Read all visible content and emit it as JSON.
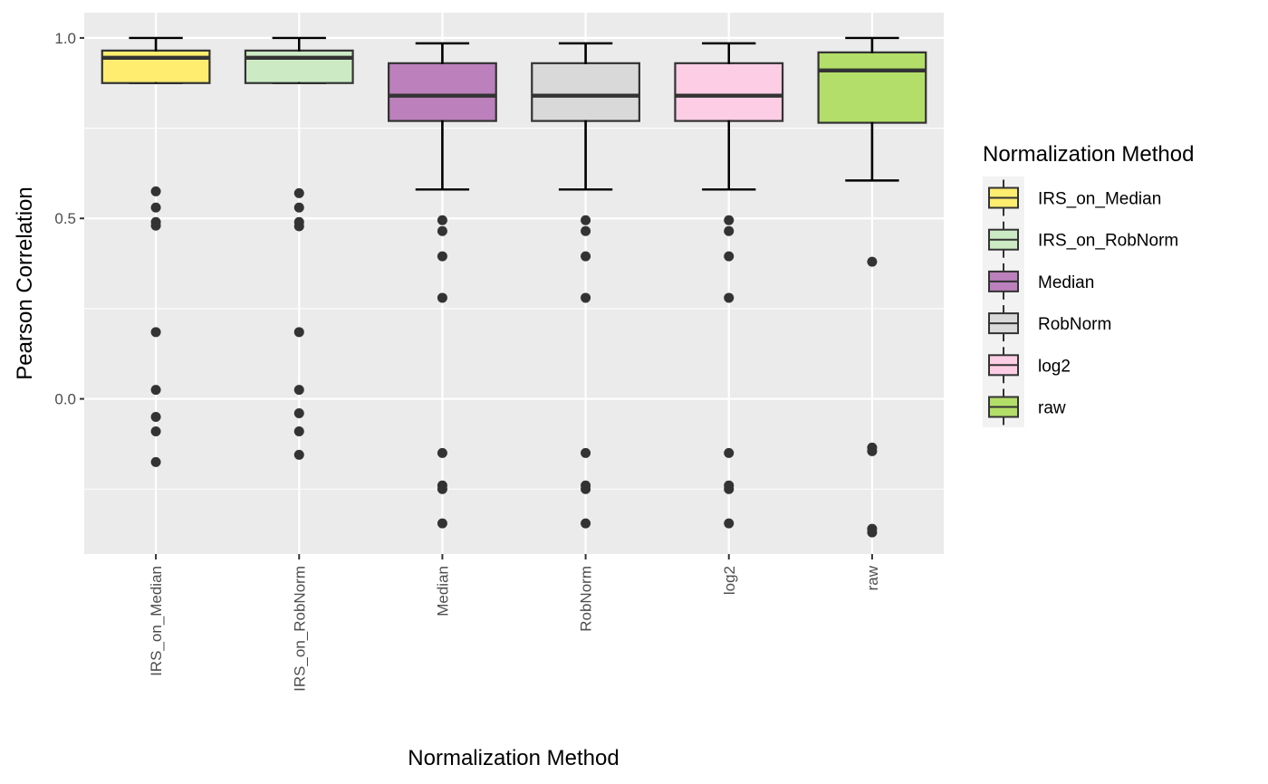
{
  "chart_data": {
    "type": "boxplot",
    "xlabel": "Normalization Method",
    "ylabel": "Pearson Correlation",
    "ylim": [
      -0.43,
      1.07
    ],
    "yticks": [
      0.0,
      0.5,
      1.0
    ],
    "ytick_labels": [
      "0.0",
      "0.5",
      "1.0"
    ],
    "grid": true,
    "legend": {
      "title": "Normalization Method",
      "position": "right"
    },
    "categories": [
      "IRS_on_Median",
      "IRS_on_RobNorm",
      "Median",
      "RobNorm",
      "log2",
      "raw"
    ],
    "series": [
      {
        "name": "IRS_on_Median",
        "color": "#FFED6F",
        "q1": 0.875,
        "median": 0.945,
        "q3": 0.965,
        "whisker_low": 0.875,
        "whisker_high": 1.0,
        "outliers": [
          0.575,
          0.53,
          0.49,
          0.48,
          0.185,
          0.025,
          -0.05,
          -0.09,
          -0.175
        ]
      },
      {
        "name": "IRS_on_RobNorm",
        "color": "#CCEBC5",
        "q1": 0.875,
        "median": 0.945,
        "q3": 0.965,
        "whisker_low": 0.875,
        "whisker_high": 1.0,
        "outliers": [
          0.57,
          0.53,
          0.49,
          0.478,
          0.185,
          0.025,
          -0.04,
          -0.09,
          -0.155
        ]
      },
      {
        "name": "Median",
        "color": "#BC80BD",
        "q1": 0.77,
        "median": 0.84,
        "q3": 0.93,
        "whisker_low": 0.58,
        "whisker_high": 0.985,
        "outliers": [
          0.495,
          0.465,
          0.395,
          0.28,
          -0.15,
          -0.24,
          -0.25,
          -0.345
        ]
      },
      {
        "name": "RobNorm",
        "color": "#D9D9D9",
        "q1": 0.77,
        "median": 0.84,
        "q3": 0.93,
        "whisker_low": 0.58,
        "whisker_high": 0.985,
        "outliers": [
          0.495,
          0.465,
          0.395,
          0.28,
          -0.15,
          -0.24,
          -0.25,
          -0.345
        ]
      },
      {
        "name": "log2",
        "color": "#FCCDE5",
        "q1": 0.77,
        "median": 0.84,
        "q3": 0.93,
        "whisker_low": 0.58,
        "whisker_high": 0.985,
        "outliers": [
          0.495,
          0.465,
          0.395,
          0.28,
          -0.15,
          -0.24,
          -0.25,
          -0.345
        ]
      },
      {
        "name": "raw",
        "color": "#B3DE69",
        "q1": 0.765,
        "median": 0.91,
        "q3": 0.96,
        "whisker_low": 0.605,
        "whisker_high": 1.0,
        "outliers": [
          0.38,
          -0.135,
          -0.145,
          -0.36,
          -0.37
        ]
      }
    ]
  }
}
